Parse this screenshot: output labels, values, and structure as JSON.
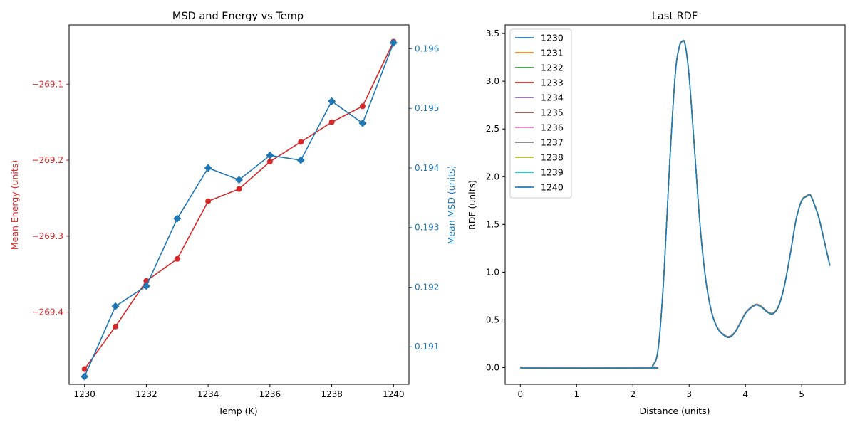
{
  "chart_data": [
    {
      "type": "line",
      "title": "MSD and Energy vs Temp",
      "xlabel": "Temp (K)",
      "ylabel_left": "Mean Energy (units)",
      "ylabel_right": "Mean MSD (units)",
      "x": [
        1230,
        1231,
        1232,
        1233,
        1234,
        1235,
        1236,
        1237,
        1238,
        1239,
        1240
      ],
      "xlim": [
        1229.5,
        1240.5
      ],
      "xticks": [
        1230,
        1232,
        1234,
        1236,
        1238,
        1240
      ],
      "ylim_left": [
        -269.495,
        -269.022
      ],
      "yticks_left": [
        -269.4,
        -269.3,
        -269.2,
        -269.1
      ],
      "yticklabels_left": [
        "−269.4",
        "−269.3",
        "−269.2",
        "−269.1"
      ],
      "ylim_right": [
        190.37,
        196.4
      ],
      "yticks_right": [
        191,
        192,
        193,
        194,
        195,
        196
      ],
      "yticklabels_right": [
        "0.191",
        "0.192",
        "0.193",
        "0.194",
        "0.195",
        "0.196"
      ],
      "grid": false,
      "series": [
        {
          "axis": "left",
          "color": "#d62728",
          "marker": "circle",
          "values": [
            -269.475,
            -269.419,
            -269.359,
            -269.33,
            -269.254,
            -269.238,
            -269.202,
            -269.176,
            -269.15,
            -269.129,
            -269.044
          ]
        },
        {
          "axis": "right",
          "color": "#1f77b4",
          "marker": "diamond",
          "values": [
            190.5,
            191.68,
            192.02,
            193.15,
            194.0,
            193.8,
            194.21,
            194.13,
            195.12,
            194.75,
            196.1
          ]
        }
      ]
    },
    {
      "type": "line",
      "title": "Last RDF",
      "xlabel": "Distance (units)",
      "ylabel": "RDF (units)",
      "xlim": [
        -0.27,
        5.77
      ],
      "xticks": [
        0,
        1,
        2,
        3,
        4,
        5
      ],
      "xticklabels": [
        "0",
        "1",
        "2",
        "3",
        "4",
        "5"
      ],
      "ylim": [
        -0.175,
        3.59
      ],
      "yticks": [
        0.0,
        0.5,
        1.0,
        1.5,
        2.0,
        2.5,
        3.0,
        3.5
      ],
      "yticklabels": [
        "0.0",
        "0.5",
        "1.0",
        "1.5",
        "2.0",
        "2.5",
        "3.0",
        "3.5"
      ],
      "grid": false,
      "legend_position": "upper-left",
      "x": [
        0,
        2.25,
        2.35,
        2.45,
        2.55,
        2.65,
        2.75,
        2.82,
        2.88,
        2.93,
        3.0,
        3.1,
        3.2,
        3.3,
        3.4,
        3.5,
        3.6,
        3.7,
        3.8,
        3.9,
        4.0,
        4.1,
        4.2,
        4.3,
        4.4,
        4.5,
        4.6,
        4.7,
        4.8,
        4.9,
        5.0,
        5.1,
        5.15,
        5.2,
        5.3,
        5.4,
        5.5
      ],
      "y_values": [
        0.0,
        0.0,
        0.02,
        0.2,
        0.95,
        2.1,
        3.05,
        3.35,
        3.42,
        3.38,
        3.05,
        2.25,
        1.45,
        0.9,
        0.58,
        0.42,
        0.35,
        0.32,
        0.36,
        0.46,
        0.57,
        0.63,
        0.66,
        0.63,
        0.58,
        0.57,
        0.66,
        0.88,
        1.2,
        1.55,
        1.75,
        1.8,
        1.81,
        1.75,
        1.58,
        1.33,
        1.07
      ],
      "series": [
        {
          "name": "1230",
          "color": "#1f77b4"
        },
        {
          "name": "1231",
          "color": "#ff7f0e"
        },
        {
          "name": "1232",
          "color": "#2ca02c"
        },
        {
          "name": "1233",
          "color": "#d62728"
        },
        {
          "name": "1234",
          "color": "#9467bd"
        },
        {
          "name": "1235",
          "color": "#8c564b"
        },
        {
          "name": "1236",
          "color": "#e377c2"
        },
        {
          "name": "1237",
          "color": "#7f7f7f"
        },
        {
          "name": "1238",
          "color": "#bcbd22"
        },
        {
          "name": "1239",
          "color": "#17becf"
        },
        {
          "name": "1240",
          "color": "#1f77b4"
        }
      ]
    }
  ]
}
